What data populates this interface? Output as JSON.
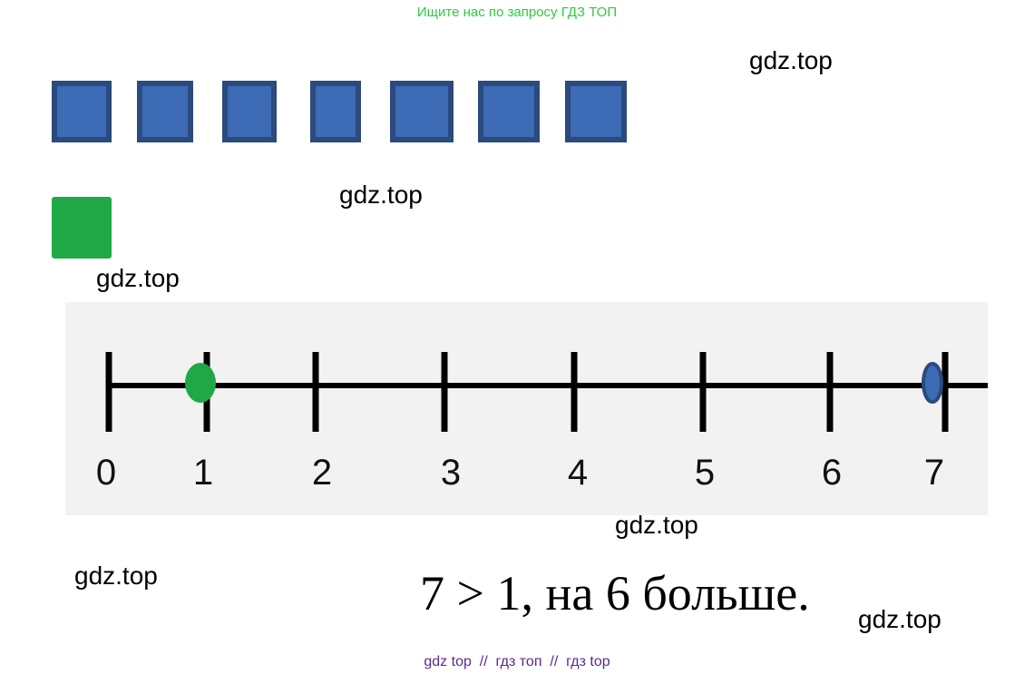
{
  "header": "Ищите нас по запросу ГДЗ ТОП",
  "watermarks": [
    "gdz.top",
    "gdz.top",
    "gdz.top",
    "gdz.top",
    "gdz.top",
    "gdz.top"
  ],
  "number_line": {
    "labels": [
      "0",
      "1",
      "2",
      "3",
      "4",
      "5",
      "6",
      "7"
    ]
  },
  "equation": "7 > 1, на 6 больше.",
  "footer": "gdz top  //  гдз топ  //  гдз top"
}
